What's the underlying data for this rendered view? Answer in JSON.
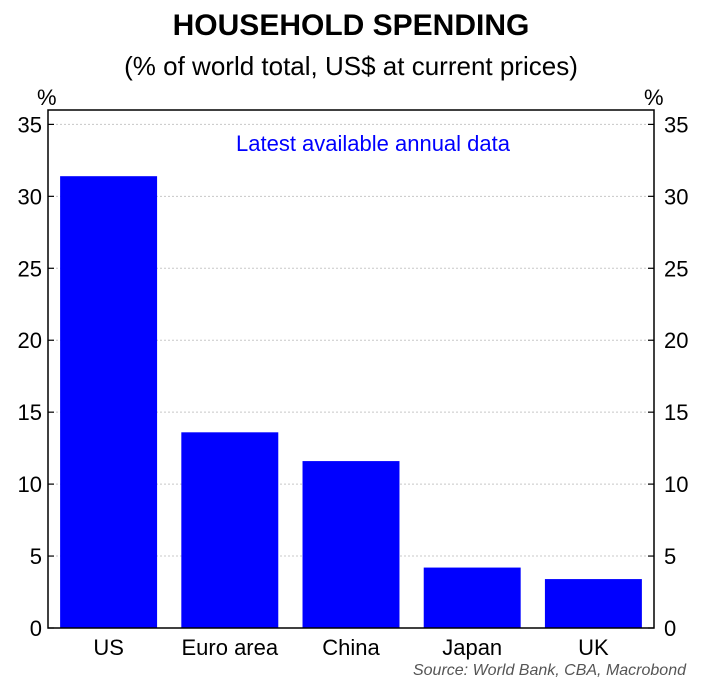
{
  "chart_data": {
    "type": "bar",
    "title": "HOUSEHOLD SPENDING",
    "subtitle": "(% of world total, US$ at current prices)",
    "annotation": "Latest available annual data",
    "source": "Source: World Bank, CBA, Macrobond",
    "left_unit": "%",
    "right_unit": "%",
    "categories": [
      "US",
      "Euro area",
      "China",
      "Japan",
      "UK"
    ],
    "values": [
      31.4,
      13.6,
      11.6,
      4.2,
      3.4
    ],
    "ylim": [
      0,
      36
    ],
    "yticks": [
      "0",
      "5",
      "10",
      "15",
      "20",
      "25",
      "30",
      "35"
    ],
    "grid": true,
    "bar_color": "#0000ff",
    "annotation_color": "#0000ff",
    "source_color": "#555555"
  }
}
